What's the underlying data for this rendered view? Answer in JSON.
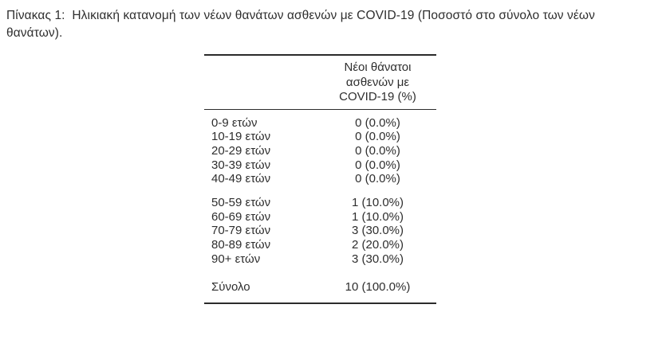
{
  "caption": {
    "text": "Πίνακας 1:  Ηλικιακή κατανομή των νέων θανάτων ασθενών με COVID-19 (Ποσοστό στο σύνολο των νέων θανάτων)."
  },
  "table": {
    "value_column_header_lines": [
      "Νέοι θάνατοι",
      "ασθενών με",
      "COVID-19 (%)"
    ],
    "groups": [
      {
        "rows": [
          {
            "label": "0-9 ετών",
            "value": "0 (0.0%)"
          },
          {
            "label": "10-19 ετών",
            "value": "0 (0.0%)"
          },
          {
            "label": "20-29 ετών",
            "value": "0 (0.0%)"
          },
          {
            "label": "30-39 ετών",
            "value": "0 (0.0%)"
          },
          {
            "label": "40-49 ετών",
            "value": "0 (0.0%)"
          }
        ]
      },
      {
        "rows": [
          {
            "label": "50-59 ετών",
            "value": "1 (10.0%)"
          },
          {
            "label": "60-69 ετών",
            "value": "1 (10.0%)"
          },
          {
            "label": "70-79 ετών",
            "value": "3 (30.0%)"
          },
          {
            "label": "80-89 ετών",
            "value": "2 (20.0%)"
          },
          {
            "label": "90+ ετών",
            "value": "3 (30.0%)"
          }
        ]
      },
      {
        "rows": [
          {
            "label": "Σύνολο",
            "value": "10 (100.0%)"
          }
        ]
      }
    ]
  },
  "chart_data": {
    "type": "table",
    "title": "Νέοι θάνατοι ασθενών με COVID-19 (%)",
    "categories": [
      "0-9 ετών",
      "10-19 ετών",
      "20-29 ετών",
      "30-39 ετών",
      "40-49 ετών",
      "50-59 ετών",
      "60-69 ετών",
      "70-79 ετών",
      "80-89 ετών",
      "90+ ετών",
      "Σύνολο"
    ],
    "deaths": [
      0,
      0,
      0,
      0,
      0,
      1,
      1,
      3,
      2,
      3,
      10
    ],
    "percent_of_total": [
      0.0,
      0.0,
      0.0,
      0.0,
      0.0,
      10.0,
      10.0,
      30.0,
      20.0,
      30.0,
      100.0
    ]
  },
  "colors": {
    "background": "#ffffff",
    "text": "#2e2e2e",
    "rule": "#2b2b2b"
  }
}
